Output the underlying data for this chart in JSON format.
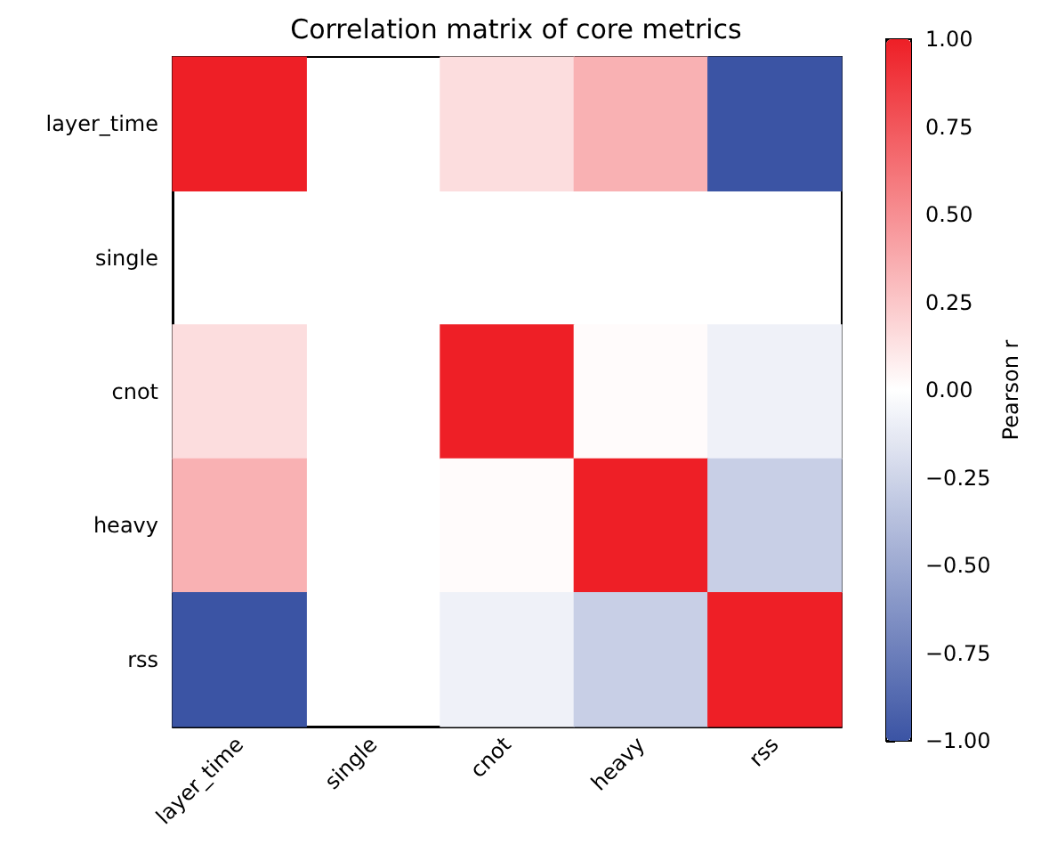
{
  "chart_data": {
    "type": "heatmap",
    "title": "Correlation matrix of core metrics",
    "categories": [
      "layer_time",
      "single",
      "cnot",
      "heavy",
      "rss"
    ],
    "y_categories": [
      "layer_time",
      "single",
      "cnot",
      "heavy",
      "rss"
    ],
    "cells": [
      [
        1.0,
        null,
        0.15,
        0.35,
        -1.0
      ],
      [
        null,
        null,
        null,
        null,
        null
      ],
      [
        0.15,
        null,
        1.0,
        0.02,
        -0.08
      ],
      [
        0.35,
        null,
        0.02,
        1.0,
        -0.28
      ],
      [
        -1.0,
        null,
        -0.08,
        -0.28,
        1.0
      ]
    ],
    "clabel": "Pearson r",
    "clim": [
      -1.0,
      1.0
    ],
    "cticks": [
      {
        "value": -1,
        "label": "−1.00"
      },
      {
        "value": -0.75,
        "label": "−0.75"
      },
      {
        "value": -0.5,
        "label": "−0.50"
      },
      {
        "value": -0.25,
        "label": "−0.25"
      },
      {
        "value": 0,
        "label": "0.00"
      },
      {
        "value": 0.25,
        "label": "0.25"
      },
      {
        "value": 0.5,
        "label": "0.50"
      },
      {
        "value": 0.75,
        "label": "0.75"
      },
      {
        "value": 1,
        "label": "1.00"
      }
    ]
  }
}
